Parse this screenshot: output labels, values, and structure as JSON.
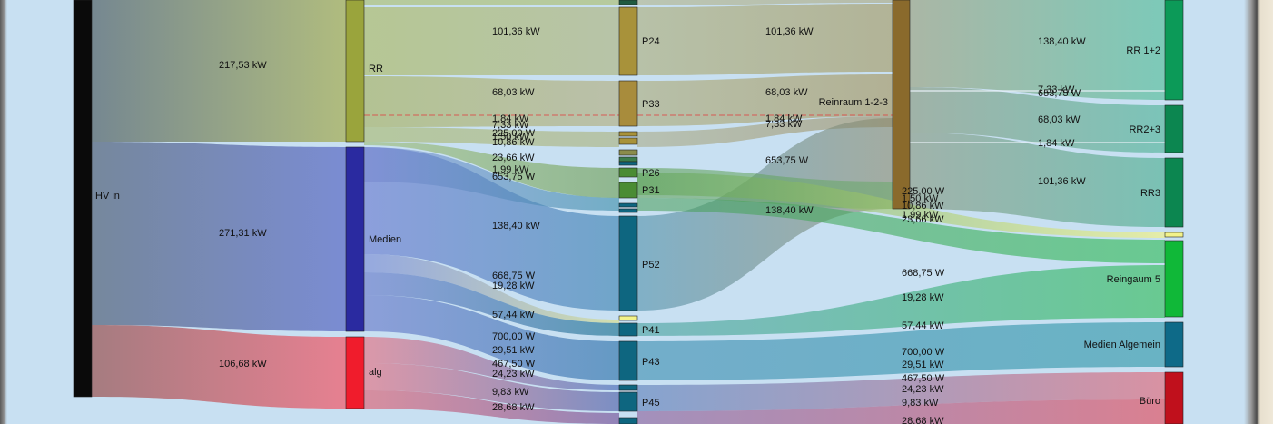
{
  "chart_data": {
    "type": "sankey",
    "unit": "kW",
    "colors": {
      "hv": "#0a0a0a",
      "rr": "#9aa43c",
      "medien": "#2a2aa0",
      "alg": "#f01c2c",
      "p_gold": "#a8923a",
      "p_green": "#4a8c34",
      "p_teal": "#0e6680",
      "reinraum": "#8a6a2c",
      "rr_dest": "#0c9a58",
      "rr3": "#0c8650",
      "reingaum": "#10b838",
      "medien_alg": "#0e6a88",
      "buero": "#c0101c",
      "yellow": "#f2f28a"
    },
    "nodes": [
      {
        "id": "hv_in",
        "label": "HV in"
      },
      {
        "id": "rr",
        "label": "RR"
      },
      {
        "id": "medien",
        "label": "Medien"
      },
      {
        "id": "alg",
        "label": "alg"
      },
      {
        "id": "p24",
        "label": "P24"
      },
      {
        "id": "p33",
        "label": "P33"
      },
      {
        "id": "p26",
        "label": "P26"
      },
      {
        "id": "p31",
        "label": "P31"
      },
      {
        "id": "p52",
        "label": "P52"
      },
      {
        "id": "p41",
        "label": "P41"
      },
      {
        "id": "p43",
        "label": "P43"
      },
      {
        "id": "p45",
        "label": "P45"
      },
      {
        "id": "reinraum",
        "label": "Reinraum 1-2-3"
      },
      {
        "id": "rr12",
        "label": "RR 1+2"
      },
      {
        "id": "rr23",
        "label": "RR2+3"
      },
      {
        "id": "rr3",
        "label": "RR3"
      },
      {
        "id": "reingaum5",
        "label": "Reingaum 5"
      },
      {
        "id": "medien_alg",
        "label": "Medien Algemein"
      },
      {
        "id": "buero",
        "label": "Büro"
      }
    ],
    "links": [
      {
        "source": "hv_in",
        "target": "rr",
        "value": 217.53,
        "label": "217,53 kW"
      },
      {
        "source": "hv_in",
        "target": "medien",
        "value": 271.31,
        "label": "271,31 kW"
      },
      {
        "source": "hv_in",
        "target": "alg",
        "value": 106.68,
        "label": "106,68 kW"
      },
      {
        "source": "rr",
        "target": "p24",
        "value": 101.36,
        "label": "101,36 kW"
      },
      {
        "source": "rr",
        "target": "p33",
        "value": 68.03,
        "label": "68,03 kW"
      },
      {
        "source": "p24",
        "target": "reinraum",
        "value": 101.36,
        "label": "101,36 kW"
      },
      {
        "source": "p33",
        "target": "reinraum",
        "value": 68.03,
        "label": "68,03 kW"
      },
      {
        "source": "medien",
        "target": "p52",
        "value": 138.4,
        "label": "138,40 kW"
      },
      {
        "source": "p52",
        "target": "reinraum",
        "value": 138.4,
        "label": "138,40 kW"
      },
      {
        "source": "reinraum",
        "target": "rr12",
        "value": 138.4,
        "label": "138,40 kW"
      },
      {
        "source": "reinraum",
        "target": "rr23",
        "value": 68.03,
        "label": "68,03 kW"
      },
      {
        "source": "reinraum",
        "target": "rr3",
        "value": 101.36,
        "label": "101,36 kW"
      }
    ],
    "flow_labels": {
      "col2": [
        "101,36 kW",
        "68,03 kW",
        "1,84 kW",
        "7,33 kW",
        "225,00 W",
        "1,50 kW",
        "10,86 kW",
        "23,66 kW",
        "1,99 kW",
        "653,75 W",
        "138,40 kW",
        "668,75 W",
        "19,28 kW",
        "57,44 kW",
        "700,00 W",
        "29,51 kW",
        "467,50 W",
        "24,23 kW",
        "9,83 kW",
        "28,68 kW"
      ],
      "col3": [
        "101,36 kW",
        "68,03 kW",
        "1,84 kW",
        "7,33 kW",
        "653,75 W",
        "138,40 kW"
      ],
      "col4": [
        "225,00 W",
        "1,50 kW",
        "10,86 kW",
        "1,99 kW",
        "23,66 kW",
        "668,75 W",
        "19,28 kW",
        "57,44 kW",
        "700,00 W",
        "29,51 kW",
        "467,50 W",
        "24,23 kW",
        "9,83 kW",
        "28,68 kW"
      ],
      "col5": [
        "138,40 kW",
        "7,33 kW",
        "653,75 W",
        "68,03 kW",
        "1,84 kW",
        "101,36 kW"
      ]
    }
  }
}
